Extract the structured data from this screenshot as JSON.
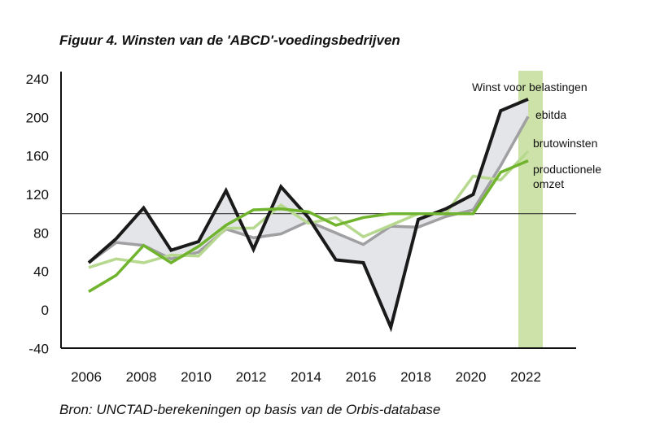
{
  "chart_data": {
    "type": "line",
    "title": "Figuur 4. Winsten van de 'ABCD'-voedingsbedrijven",
    "source": "Bron: UNCTAD-berekeningen op basis van de Orbis-database",
    "x": [
      2006,
      2007,
      2008,
      2009,
      2010,
      2011,
      2012,
      2013,
      2014,
      2015,
      2016,
      2017,
      2018,
      2019,
      2020,
      2021,
      2022
    ],
    "x_ticks": [
      "2006",
      "2008",
      "2010",
      "2012",
      "2014",
      "2016",
      "2018",
      "2020",
      "2022"
    ],
    "y_ticks": [
      "240",
      "200",
      "160",
      "120",
      "80",
      "40",
      "0",
      "-40"
    ],
    "ylim": [
      -40,
      240
    ],
    "reference_line": 100,
    "highlight_year": 2022,
    "grid": false,
    "series": [
      {
        "name": "Winst voor belastingen",
        "color": "#1a1a1a",
        "values": [
          49,
          74,
          106,
          62,
          71,
          124,
          63,
          128,
          96,
          52,
          49,
          -18,
          94,
          105,
          120,
          207,
          219
        ]
      },
      {
        "name": "ebitda",
        "color": "#a0a0a2",
        "values": [
          49,
          70,
          67,
          53,
          60,
          84,
          75,
          79,
          92,
          80,
          68,
          87,
          86,
          97,
          104,
          150,
          201
        ]
      },
      {
        "name": "brutowinsten",
        "color": "#b7d98f",
        "values": [
          44,
          53,
          49,
          57,
          56,
          85,
          85,
          109,
          90,
          96,
          76,
          88,
          100,
          100,
          139,
          135,
          165
        ]
      },
      {
        "name": "productionele omzet",
        "color": "#6fb42c",
        "values": [
          19,
          36,
          67,
          49,
          66,
          88,
          104,
          105,
          102,
          88,
          96,
          100,
          100,
          100,
          100,
          143,
          155
        ]
      }
    ],
    "shade_color": "#e4e5e8",
    "highlight_color": "#cde2a8"
  }
}
